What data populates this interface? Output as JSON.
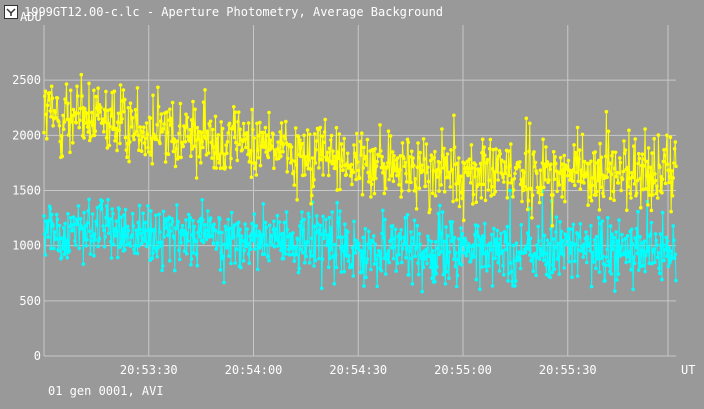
{
  "window": {
    "title": "1999GT12.00-c.lc - Aperture Photometry, Average Background",
    "icon": "lightcurve-app-icon"
  },
  "footer": {
    "info": "01 gen 0001, AVI"
  },
  "colors": {
    "background": "#999999",
    "grid": "#c8c8c8",
    "text": "#ffffff",
    "series_target": "#ffff00",
    "series_reference": "#00ffff"
  },
  "chart_data": {
    "type": "line",
    "title": "",
    "ylabel": "ADU",
    "xlabel": "UT",
    "ylim": [
      0,
      3000
    ],
    "yticks": [
      0,
      500,
      1000,
      1500,
      2000,
      2500
    ],
    "xticks": [
      "20:53:30",
      "20:54:00",
      "20:54:30",
      "20:55:00",
      "20:55:30"
    ],
    "xrange_seconds": [
      20,
      201
    ],
    "xtick_seconds": [
      50,
      80,
      110,
      140,
      170
    ],
    "grid": true,
    "marker": "dot",
    "series": [
      {
        "color": "#ffff00",
        "description": "noisy series, mean about 2200 at start decreasing to about 1650, fluctuation about ±450",
        "points": 900,
        "start_mean": 2200,
        "end_mean": 1650,
        "spread": 230
      },
      {
        "color": "#00ffff",
        "description": "noisy series, mean about 1150 at start decreasing to about 950, fluctuation about ±400",
        "points": 900,
        "start_mean": 1150,
        "end_mean": 950,
        "spread": 210
      }
    ]
  }
}
